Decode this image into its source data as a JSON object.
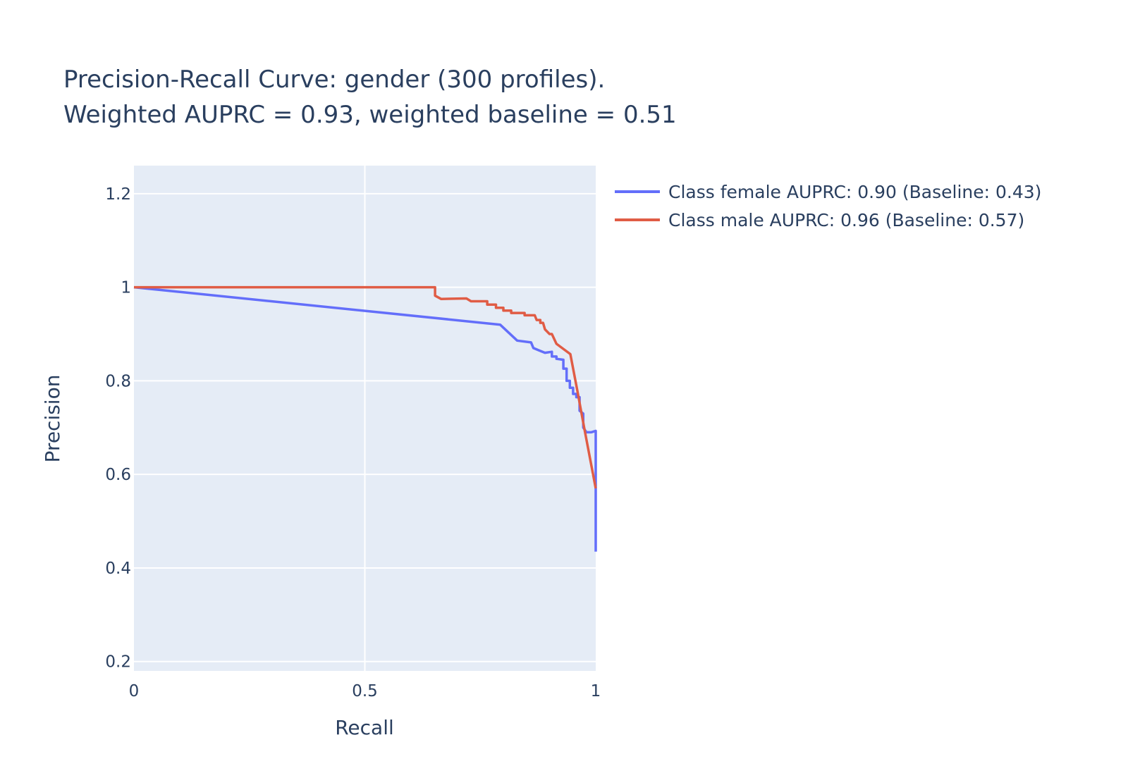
{
  "chart_data": {
    "type": "line",
    "title": [
      "Precision-Recall Curve: gender (300 profiles).",
      "Weighted AUPRC = 0.93, weighted baseline = 0.51"
    ],
    "xlabel": "Recall",
    "ylabel": "Precision",
    "xlim": [
      0,
      1
    ],
    "ylim": [
      0.18,
      1.26
    ],
    "x_ticks": [
      {
        "value": 0,
        "label": "0"
      },
      {
        "value": 0.5,
        "label": "0.5"
      },
      {
        "value": 1,
        "label": "1"
      }
    ],
    "y_ticks": [
      {
        "value": 0.2,
        "label": "0.2"
      },
      {
        "value": 0.4,
        "label": "0.4"
      },
      {
        "value": 0.6,
        "label": "0.6"
      },
      {
        "value": 0.8,
        "label": "0.8"
      },
      {
        "value": 1,
        "label": "1"
      },
      {
        "value": 1.2,
        "label": "1.2"
      }
    ],
    "grid": true,
    "legend_position": "top-right outside",
    "colors": {
      "plot_bg": "#e5ecf6",
      "grid": "#ffffff",
      "text": "#2a3f5f"
    },
    "series": [
      {
        "name": "Class female AUPRC: 0.90 (Baseline: 0.43)",
        "color": "#636efa",
        "points": [
          [
            0.0,
            1.0
          ],
          [
            0.793,
            0.92
          ],
          [
            0.83,
            0.886
          ],
          [
            0.86,
            0.882
          ],
          [
            0.865,
            0.87
          ],
          [
            0.875,
            0.866
          ],
          [
            0.89,
            0.86
          ],
          [
            0.905,
            0.862
          ],
          [
            0.905,
            0.852
          ],
          [
            0.915,
            0.852
          ],
          [
            0.915,
            0.847
          ],
          [
            0.93,
            0.845
          ],
          [
            0.93,
            0.826
          ],
          [
            0.937,
            0.826
          ],
          [
            0.937,
            0.8
          ],
          [
            0.944,
            0.8
          ],
          [
            0.944,
            0.785
          ],
          [
            0.951,
            0.785
          ],
          [
            0.951,
            0.772
          ],
          [
            0.958,
            0.772
          ],
          [
            0.958,
            0.765
          ],
          [
            0.965,
            0.765
          ],
          [
            0.965,
            0.736
          ],
          [
            0.973,
            0.73
          ],
          [
            0.973,
            0.7
          ],
          [
            0.98,
            0.69
          ],
          [
            0.99,
            0.69
          ],
          [
            1.0,
            0.693
          ],
          [
            1.0,
            0.435
          ]
        ]
      },
      {
        "name": "Class male AUPRC: 0.96 (Baseline: 0.57)",
        "color": "#e05c45",
        "points": [
          [
            0.0,
            1.0
          ],
          [
            0.652,
            1.0
          ],
          [
            0.652,
            0.982
          ],
          [
            0.665,
            0.975
          ],
          [
            0.72,
            0.976
          ],
          [
            0.73,
            0.97
          ],
          [
            0.765,
            0.97
          ],
          [
            0.765,
            0.963
          ],
          [
            0.784,
            0.963
          ],
          [
            0.784,
            0.956
          ],
          [
            0.8,
            0.956
          ],
          [
            0.8,
            0.95
          ],
          [
            0.817,
            0.95
          ],
          [
            0.817,
            0.945
          ],
          [
            0.846,
            0.945
          ],
          [
            0.846,
            0.94
          ],
          [
            0.868,
            0.94
          ],
          [
            0.872,
            0.93
          ],
          [
            0.88,
            0.93
          ],
          [
            0.88,
            0.924
          ],
          [
            0.886,
            0.924
          ],
          [
            0.89,
            0.91
          ],
          [
            0.9,
            0.9
          ],
          [
            0.905,
            0.9
          ],
          [
            0.915,
            0.879
          ],
          [
            0.945,
            0.857
          ],
          [
            0.96,
            0.78
          ],
          [
            0.975,
            0.7
          ],
          [
            1.0,
            0.57
          ]
        ]
      }
    ]
  }
}
